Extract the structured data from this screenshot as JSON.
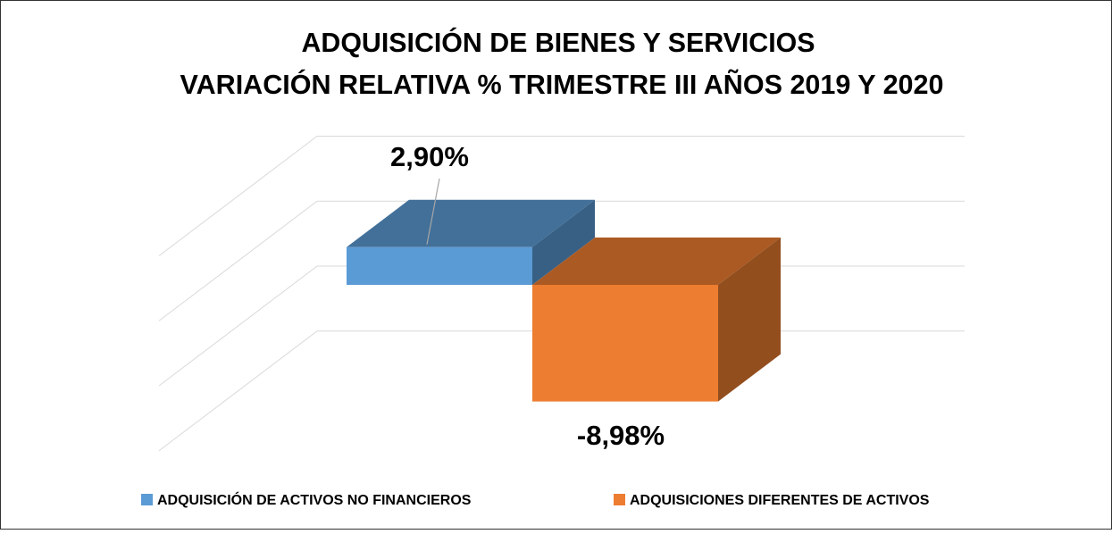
{
  "chart_data": {
    "type": "bar3d",
    "title": "ADQUISICIÓN DE BIENES Y SERVICIOS",
    "subtitle": "VARIACIÓN RELATIVA % TRIMESTRE III AÑOS 2019 Y 2020",
    "series": [
      {
        "name": "ADQUISICIÓN DE ACTIVOS NO FINANCIEROS",
        "color": "#5b9bd5",
        "values": [
          2.9
        ],
        "value_labels": [
          "2,90%"
        ]
      },
      {
        "name": "ADQUISICIONES DIFERENTES DE ACTIVOS",
        "color": "#ed7d31",
        "values": [
          -8.98
        ],
        "value_labels": [
          "-8,98%"
        ]
      }
    ],
    "ylim": [
      -10,
      10
    ],
    "yticks": [
      -5,
      0,
      5,
      10
    ],
    "grid": true,
    "legend": "bottom"
  }
}
